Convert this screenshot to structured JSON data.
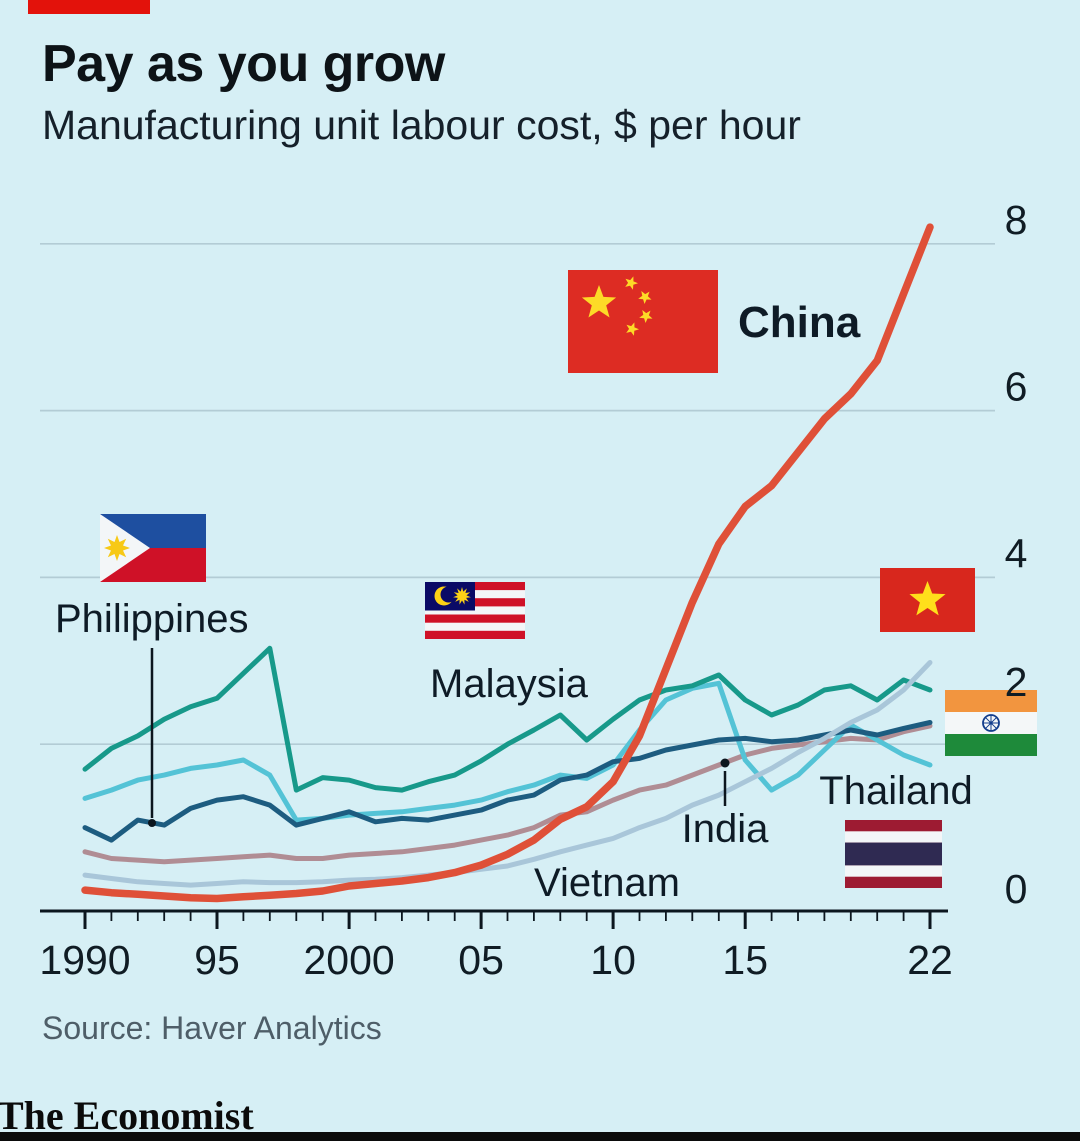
{
  "header": {
    "title": "Pay as you grow",
    "subtitle": "Manufacturing unit labour cost, $ per hour"
  },
  "footer": {
    "source": "Source: Haver Analytics",
    "brand": "The Economist"
  },
  "accent_colors": {
    "economist_red": "#e3120b",
    "background": "#d6eff5",
    "gridline": "#b3ccd5"
  },
  "chart_data": {
    "type": "line",
    "title": "Pay as you grow",
    "subtitle": "Manufacturing unit labour cost, $ per hour",
    "ylabel": "$ per hour",
    "ylim": [
      0,
      8.6
    ],
    "yticks": [
      0,
      2,
      4,
      6,
      8
    ],
    "grid": "horizontal",
    "legend_position": "inline-flag-labels",
    "x_start_year": 1990,
    "x_end_year": 2022,
    "xticks": [
      {
        "year": 1990,
        "label": "1990"
      },
      {
        "year": 1995,
        "label": "95"
      },
      {
        "year": 2000,
        "label": "2000"
      },
      {
        "year": 2005,
        "label": "05"
      },
      {
        "year": 2010,
        "label": "10"
      },
      {
        "year": 2015,
        "label": "15"
      },
      {
        "year": 2022,
        "label": "22"
      }
    ],
    "series": [
      {
        "name": "India",
        "color": "#b08d94",
        "width": 5,
        "values": [
          0.71,
          0.63,
          0.61,
          0.59,
          0.61,
          0.63,
          0.65,
          0.67,
          0.63,
          0.63,
          0.67,
          0.69,
          0.71,
          0.75,
          0.79,
          0.85,
          0.91,
          1.0,
          1.15,
          1.19,
          1.33,
          1.45,
          1.51,
          1.63,
          1.75,
          1.87,
          1.95,
          1.99,
          2.03,
          2.07,
          2.05,
          2.15,
          2.22
        ]
      },
      {
        "name": "Thailand",
        "color": "#54c3d6",
        "width": 5,
        "values": [
          1.35,
          1.45,
          1.57,
          1.63,
          1.71,
          1.75,
          1.81,
          1.63,
          1.09,
          1.11,
          1.15,
          1.17,
          1.19,
          1.23,
          1.27,
          1.33,
          1.43,
          1.51,
          1.63,
          1.59,
          1.75,
          2.17,
          2.53,
          2.67,
          2.73,
          1.81,
          1.45,
          1.63,
          1.93,
          2.23,
          2.05,
          1.87,
          1.75
        ]
      },
      {
        "name": "Philippines",
        "color": "#1d5c80",
        "width": 5,
        "values": [
          1.0,
          0.85,
          1.09,
          1.03,
          1.23,
          1.33,
          1.37,
          1.27,
          1.03,
          1.11,
          1.19,
          1.07,
          1.11,
          1.09,
          1.15,
          1.21,
          1.33,
          1.39,
          1.57,
          1.63,
          1.79,
          1.83,
          1.93,
          1.99,
          2.05,
          2.07,
          2.03,
          2.05,
          2.11,
          2.17,
          2.11,
          2.19,
          2.26
        ]
      },
      {
        "name": "Malaysia",
        "color": "#17998a",
        "width": 5,
        "values": [
          1.7,
          1.95,
          2.1,
          2.3,
          2.45,
          2.55,
          2.85,
          3.15,
          1.45,
          1.6,
          1.57,
          1.48,
          1.45,
          1.55,
          1.63,
          1.8,
          2.0,
          2.17,
          2.35,
          2.05,
          2.3,
          2.53,
          2.65,
          2.7,
          2.83,
          2.53,
          2.35,
          2.47,
          2.65,
          2.7,
          2.53,
          2.77,
          2.65
        ]
      },
      {
        "name": "Vietnam",
        "color": "#a9c6d9",
        "width": 5,
        "values": [
          0.43,
          0.39,
          0.35,
          0.33,
          0.31,
          0.33,
          0.35,
          0.34,
          0.34,
          0.35,
          0.37,
          0.38,
          0.4,
          0.43,
          0.46,
          0.5,
          0.54,
          0.62,
          0.71,
          0.79,
          0.87,
          1.0,
          1.11,
          1.27,
          1.39,
          1.55,
          1.71,
          1.9,
          2.07,
          2.26,
          2.41,
          2.65,
          2.98
        ]
      },
      {
        "name": "China",
        "color": "#df5038",
        "width": 7.5,
        "values": [
          0.25,
          0.22,
          0.2,
          0.18,
          0.16,
          0.15,
          0.17,
          0.19,
          0.21,
          0.24,
          0.3,
          0.33,
          0.36,
          0.4,
          0.46,
          0.55,
          0.68,
          0.85,
          1.1,
          1.25,
          1.55,
          2.1,
          2.9,
          3.7,
          4.4,
          4.85,
          5.1,
          5.5,
          5.9,
          6.2,
          6.6,
          7.4,
          8.2
        ]
      }
    ],
    "annotations": [
      {
        "series": "Philippines",
        "year": 1993,
        "style": "label-with-pointer-line"
      },
      {
        "series": "India",
        "year": 2014,
        "style": "dot-with-pointer-line"
      }
    ]
  }
}
